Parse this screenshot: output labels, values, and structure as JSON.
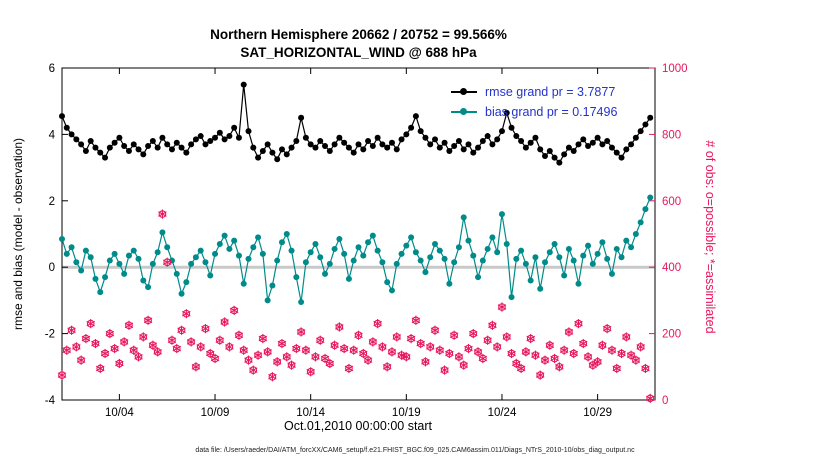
{
  "header": {
    "title_line1": "Northern Hemisphere 20662 / 20752 = 99.566%",
    "title_line2": "SAT_HORIZONTAL_WIND @ 688 hPa"
  },
  "legend": {
    "text_color": "#2433cc",
    "items": [
      {
        "name": "rmse",
        "label": "rmse grand pr = 3.7877",
        "color": "#000000"
      },
      {
        "name": "bias",
        "label": "bias grand pr = 0.17496",
        "color": "#008b8b"
      }
    ]
  },
  "axes": {
    "ylabel_left": "rmse and bias (model - observation)",
    "ylabel_right": "# of obs: o=possible; *=assimilated",
    "xlabel": "Oct.01,2010 00:00:00 start"
  },
  "caption": "data file: /Users/raeder/DAI/ATM_forcXX/CAM6_setup/f.e21.FHIST_BGC.f09_025.CAM6assim.011/Diags_NTrS_2010-10/obs_diag_output.nc",
  "chart_data": {
    "type": "line",
    "x_start_day": 0,
    "x_step_days": 0.25,
    "x_axis": {
      "min": 0,
      "max": 31,
      "ticks": [
        {
          "day": 3,
          "label": "10/04"
        },
        {
          "day": 8,
          "label": "10/09"
        },
        {
          "day": 13,
          "label": "10/14"
        },
        {
          "day": 18,
          "label": "10/19"
        },
        {
          "day": 23,
          "label": "10/24"
        },
        {
          "day": 28,
          "label": "10/29"
        }
      ]
    },
    "y_left": {
      "min": -4,
      "max": 6,
      "ticks": [
        -4,
        -2,
        0,
        2,
        4,
        6
      ],
      "color": "#000000"
    },
    "y_right": {
      "min": 0,
      "max": 1000,
      "ticks": [
        0,
        200,
        400,
        600,
        800,
        1000
      ],
      "color": "#e8175d"
    },
    "zero_line": {
      "y": 0,
      "color": "#c9c9c9"
    },
    "series": [
      {
        "name": "rmse",
        "axis": "left",
        "color": "#000000",
        "marker": "dot-line",
        "grand_mean": 3.7877,
        "values": [
          4.55,
          4.2,
          4.0,
          3.85,
          3.7,
          3.5,
          3.8,
          3.6,
          3.45,
          3.3,
          3.6,
          3.75,
          3.9,
          3.65,
          3.5,
          3.7,
          3.55,
          3.4,
          3.65,
          3.8,
          3.6,
          3.9,
          3.7,
          3.55,
          3.75,
          3.6,
          3.45,
          3.7,
          3.85,
          3.95,
          3.7,
          3.8,
          3.9,
          4.05,
          3.85,
          3.95,
          4.2,
          3.9,
          5.5,
          4.1,
          3.6,
          3.3,
          3.5,
          3.7,
          3.45,
          3.25,
          3.55,
          3.4,
          3.6,
          3.8,
          4.5,
          3.9,
          3.7,
          3.6,
          3.8,
          3.65,
          3.5,
          3.7,
          3.9,
          3.75,
          3.6,
          3.45,
          3.7,
          3.55,
          3.8,
          3.65,
          3.9,
          3.7,
          3.6,
          3.75,
          3.55,
          3.85,
          4.0,
          4.2,
          4.55,
          4.1,
          3.9,
          3.7,
          3.85,
          3.6,
          3.75,
          3.5,
          3.65,
          3.8,
          3.55,
          3.7,
          3.45,
          3.6,
          3.8,
          3.95,
          3.7,
          3.85,
          4.1,
          4.65,
          4.2,
          3.95,
          3.8,
          3.6,
          3.75,
          3.9,
          3.55,
          3.35,
          3.5,
          3.3,
          3.15,
          3.4,
          3.6,
          3.5,
          3.7,
          3.85,
          3.65,
          3.75,
          3.9,
          3.7,
          3.8,
          3.6,
          3.45,
          3.3,
          3.55,
          3.7,
          3.9,
          4.1,
          4.3,
          4.5
        ]
      },
      {
        "name": "bias",
        "axis": "left",
        "color": "#008b8b",
        "marker": "dot-line",
        "grand_mean": 0.17496,
        "values": [
          0.85,
          0.4,
          0.6,
          0.15,
          -0.1,
          0.5,
          0.3,
          -0.35,
          -0.75,
          -0.3,
          0.2,
          0.4,
          0.1,
          -0.2,
          0.35,
          0.5,
          0.25,
          -0.4,
          -0.6,
          0.1,
          0.45,
          1.05,
          0.6,
          0.2,
          -0.2,
          -0.8,
          -0.45,
          0.1,
          0.3,
          0.5,
          0.15,
          -0.25,
          0.4,
          0.7,
          0.95,
          0.55,
          0.8,
          0.35,
          -0.5,
          0.25,
          0.6,
          0.9,
          0.4,
          -1.0,
          -0.55,
          0.2,
          0.75,
          1.0,
          0.5,
          -0.3,
          -1.05,
          0.15,
          0.45,
          0.7,
          0.3,
          -0.2,
          0.1,
          0.55,
          0.85,
          0.4,
          -0.35,
          0.2,
          0.6,
          0.35,
          0.75,
          0.95,
          0.5,
          0.15,
          -0.45,
          -0.7,
          0.1,
          0.4,
          0.65,
          0.9,
          0.45,
          0.2,
          -0.15,
          0.3,
          0.7,
          0.5,
          0.25,
          -0.5,
          0.15,
          0.6,
          1.5,
          0.8,
          0.35,
          -0.3,
          0.2,
          0.55,
          0.9,
          0.45,
          1.6,
          0.7,
          -0.9,
          0.25,
          0.5,
          0.1,
          -0.4,
          0.3,
          -0.65,
          0.15,
          0.45,
          0.7,
          0.3,
          -0.25,
          0.55,
          0.2,
          -0.5,
          0.35,
          0.65,
          0.1,
          0.4,
          0.75,
          0.25,
          -0.2,
          0.55,
          0.3,
          0.8,
          0.6,
          1.0,
          1.35,
          1.75,
          2.1
        ]
      },
      {
        "name": "obs_count_possible",
        "axis": "right",
        "color": "#e8175d",
        "marker": "circle-asterisk",
        "note": "assimilated markers (99.566%) overlap possible markers at this scale",
        "values": [
          75,
          150,
          210,
          160,
          120,
          185,
          230,
          170,
          95,
          140,
          200,
          155,
          110,
          175,
          225,
          150,
          130,
          190,
          240,
          165,
          145,
          560,
          415,
          180,
          155,
          210,
          260,
          175,
          100,
          160,
          215,
          140,
          125,
          180,
          235,
          160,
          270,
          195,
          150,
          120,
          90,
          135,
          185,
          145,
          70,
          115,
          170,
          130,
          105,
          155,
          205,
          150,
          85,
          130,
          180,
          125,
          110,
          165,
          220,
          155,
          95,
          150,
          195,
          140,
          120,
          175,
          230,
          160,
          100,
          145,
          190,
          135,
          130,
          185,
          240,
          170,
          115,
          160,
          210,
          150,
          90,
          140,
          195,
          130,
          105,
          155,
          200,
          145,
          125,
          180,
          225,
          160,
          280,
          190,
          140,
          110,
          95,
          145,
          185,
          135,
          75,
          120,
          165,
          125,
          100,
          150,
          205,
          140,
          230,
          170,
          130,
          105,
          115,
          165,
          215,
          150,
          95,
          140,
          190,
          135,
          120,
          160,
          95,
          5
        ]
      }
    ]
  }
}
